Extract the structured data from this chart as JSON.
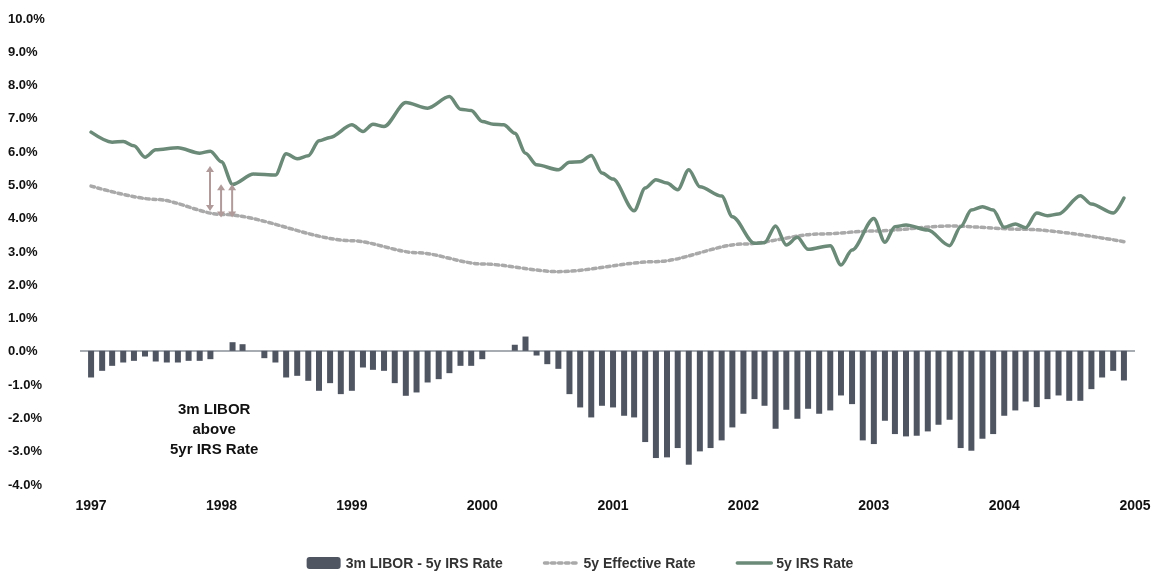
{
  "chart_data": {
    "type": "bar",
    "legend": "bottom",
    "grid": false,
    "marker": "none",
    "annotations": [
      "3m LIBOR\nabove\n5yr IRS Rate"
    ],
    "xlim": [
      "1996-12",
      "2005-01"
    ],
    "xticks": [
      "1997",
      "1998",
      "1999",
      "2000",
      "2001",
      "2002",
      "2003",
      "2004",
      "2005"
    ],
    "ylim": [
      -4,
      10
    ],
    "yticks": [
      {
        "value": -4,
        "label": "-4.0%"
      },
      {
        "value": -3,
        "label": "-3.0%"
      },
      {
        "value": -2,
        "label": "-2.0%"
      },
      {
        "value": -1,
        "label": "-1.0%"
      },
      {
        "value": 0,
        "label": "0.0%"
      },
      {
        "value": 1,
        "label": "1.0%"
      },
      {
        "value": 2,
        "label": "2.0%"
      },
      {
        "value": 3,
        "label": "3.0%"
      },
      {
        "value": 4,
        "label": "4.0%"
      },
      {
        "value": 5,
        "label": "5.0%"
      },
      {
        "value": 6,
        "label": "6.0%"
      },
      {
        "value": 7,
        "label": "7.0%"
      },
      {
        "value": 8,
        "label": "8.0%"
      },
      {
        "value": 9,
        "label": "9.0%"
      },
      {
        "value": 10,
        "label": "10.0%"
      }
    ],
    "ref_lines": [
      {
        "axis": "y",
        "value": 0,
        "color": "#8a8f98"
      }
    ],
    "x": [
      "1997-01",
      "1997-02",
      "1997-03",
      "1997-04",
      "1997-05",
      "1997-06",
      "1997-07",
      "1997-08",
      "1997-09",
      "1997-10",
      "1997-11",
      "1997-12",
      "1998-01",
      "1998-02",
      "1998-03",
      "1998-04",
      "1998-05",
      "1998-06",
      "1998-07",
      "1998-08",
      "1998-09",
      "1998-10",
      "1998-11",
      "1998-12",
      "1999-01",
      "1999-02",
      "1999-03",
      "1999-04",
      "1999-05",
      "1999-06",
      "1999-07",
      "1999-08",
      "1999-09",
      "1999-10",
      "1999-11",
      "1999-12",
      "2000-01",
      "2000-02",
      "2000-03",
      "2000-04",
      "2000-05",
      "2000-06",
      "2000-07",
      "2000-08",
      "2000-09",
      "2000-10",
      "2000-11",
      "2000-12",
      "2001-01",
      "2001-02",
      "2001-03",
      "2001-04",
      "2001-05",
      "2001-06",
      "2001-07",
      "2001-08",
      "2001-09",
      "2001-10",
      "2001-11",
      "2001-12",
      "2002-01",
      "2002-02",
      "2002-03",
      "2002-04",
      "2002-05",
      "2002-06",
      "2002-07",
      "2002-08",
      "2002-09",
      "2002-10",
      "2002-11",
      "2002-12",
      "2003-01",
      "2003-02",
      "2003-03",
      "2003-04",
      "2003-05",
      "2003-06",
      "2003-07",
      "2003-08",
      "2003-09",
      "2003-10",
      "2003-11",
      "2003-12",
      "2004-01",
      "2004-02",
      "2004-03",
      "2004-04",
      "2004-05",
      "2004-06",
      "2004-07",
      "2004-08",
      "2004-09",
      "2004-10",
      "2004-11",
      "2004-12"
    ],
    "series": [
      {
        "name": "3m LIBOR - 5y IRS Rate",
        "color": "#4f5561",
        "values": [
          -0.8,
          -0.6,
          -0.45,
          -0.35,
          -0.3,
          -0.17,
          -0.32,
          -0.35,
          -0.35,
          -0.3,
          -0.3,
          -0.25,
          0,
          0.26,
          0.2,
          0,
          -0.22,
          -0.35,
          -0.8,
          -0.75,
          -0.9,
          -1.2,
          -0.97,
          -1.3,
          -1.2,
          -0.5,
          -0.57,
          -0.6,
          -0.97,
          -1.35,
          -1.25,
          -0.95,
          -0.85,
          -0.67,
          -0.45,
          -0.45,
          -0.25,
          0,
          0,
          0.18,
          0.43,
          -0.14,
          -0.4,
          -0.54,
          -1.3,
          -1.7,
          -2.0,
          -1.65,
          -1.7,
          -1.95,
          -2.0,
          -2.74,
          -3.22,
          -3.2,
          -2.92,
          -3.42,
          -3.02,
          -2.92,
          -2.69,
          -2.3,
          -1.89,
          -1.45,
          -1.65,
          -2.34,
          -1.77,
          -2.04,
          -1.74,
          -1.89,
          -1.79,
          -1.34,
          -1.6,
          -2.69,
          -2.8,
          -2.1,
          -2.5,
          -2.57,
          -2.55,
          -2.42,
          -2.22,
          -2.07,
          -2.92,
          -3.0,
          -2.64,
          -2.5,
          -1.95,
          -1.79,
          -1.52,
          -1.69,
          -1.45,
          -1.34,
          -1.5,
          -1.5,
          -1.15,
          -0.8,
          -0.6,
          -0.89
        ]
      },
      {
        "name": "5y Effective Rate",
        "type": "line",
        "line_style": "dotted",
        "color": "#a9a9a9",
        "x": [
          "1997-01",
          "1997-07",
          "1998-01",
          "1999-01",
          "1999-07",
          "2000-01",
          "2000-08",
          "2001-05",
          "2002-01",
          "2002-08",
          "2003-01",
          "2003-08",
          "2004-03",
          "2004-12"
        ],
        "values": [
          4.95,
          4.55,
          4.1,
          3.31,
          2.95,
          2.61,
          2.38,
          2.68,
          3.21,
          3.51,
          3.6,
          3.75,
          3.65,
          3.28
        ]
      },
      {
        "name": "5y IRS Rate",
        "type": "line",
        "line_style": "solid",
        "color": "#6b8a78",
        "x": [
          "1997-01",
          "1997-03",
          "1997-04",
          "1997-05",
          "1997-06",
          "1997-07",
          "1997-09",
          "1997-11",
          "1997-12",
          "1998-01",
          "1998-02",
          "1998-04",
          "1998-06",
          "1998-07",
          "1998-08",
          "1998-09",
          "1998-10",
          "1998-11",
          "1999-01",
          "1999-02",
          "1999-03",
          "1999-04",
          "1999-06",
          "1999-08",
          "1999-10",
          "1999-11",
          "1999-12",
          "2000-01",
          "2000-02",
          "2000-03",
          "2000-04",
          "2000-05",
          "2000-06",
          "2000-08",
          "2000-09",
          "2000-10",
          "2000-11",
          "2000-12",
          "2001-01",
          "2001-03",
          "2001-04",
          "2001-05",
          "2001-06",
          "2001-07",
          "2001-08",
          "2001-09",
          "2001-11",
          "2001-12",
          "2002-02",
          "2002-03",
          "2002-04",
          "2002-05",
          "2002-06",
          "2002-07",
          "2002-09",
          "2002-10",
          "2002-11",
          "2003-01",
          "2003-02",
          "2003-03",
          "2003-04",
          "2003-06",
          "2003-08",
          "2003-09",
          "2003-10",
          "2003-11",
          "2003-12",
          "2004-01",
          "2004-02",
          "2004-03",
          "2004-04",
          "2004-05",
          "2004-06",
          "2004-08",
          "2004-09",
          "2004-11",
          "2004-12"
        ],
        "values": [
          6.57,
          6.27,
          6.29,
          6.16,
          5.82,
          6.04,
          6.1,
          5.94,
          6.0,
          5.68,
          5.0,
          5.31,
          5.28,
          5.92,
          5.77,
          5.86,
          6.31,
          6.41,
          6.79,
          6.59,
          6.81,
          6.74,
          7.46,
          7.29,
          7.64,
          7.26,
          7.22,
          6.89,
          6.81,
          6.79,
          6.54,
          5.94,
          5.59,
          5.44,
          5.67,
          5.68,
          5.87,
          5.34,
          5.16,
          4.21,
          4.89,
          5.14,
          5.04,
          4.84,
          5.44,
          4.93,
          4.65,
          4.03,
          3.23,
          3.25,
          3.75,
          3.18,
          3.41,
          3.05,
          3.16,
          2.58,
          3.03,
          3.98,
          3.26,
          3.73,
          3.78,
          3.63,
          3.16,
          3.73,
          4.23,
          4.33,
          4.23,
          3.71,
          3.81,
          3.7,
          4.14,
          4.06,
          4.11,
          4.66,
          4.41,
          4.14,
          4.59
        ]
      }
    ]
  }
}
